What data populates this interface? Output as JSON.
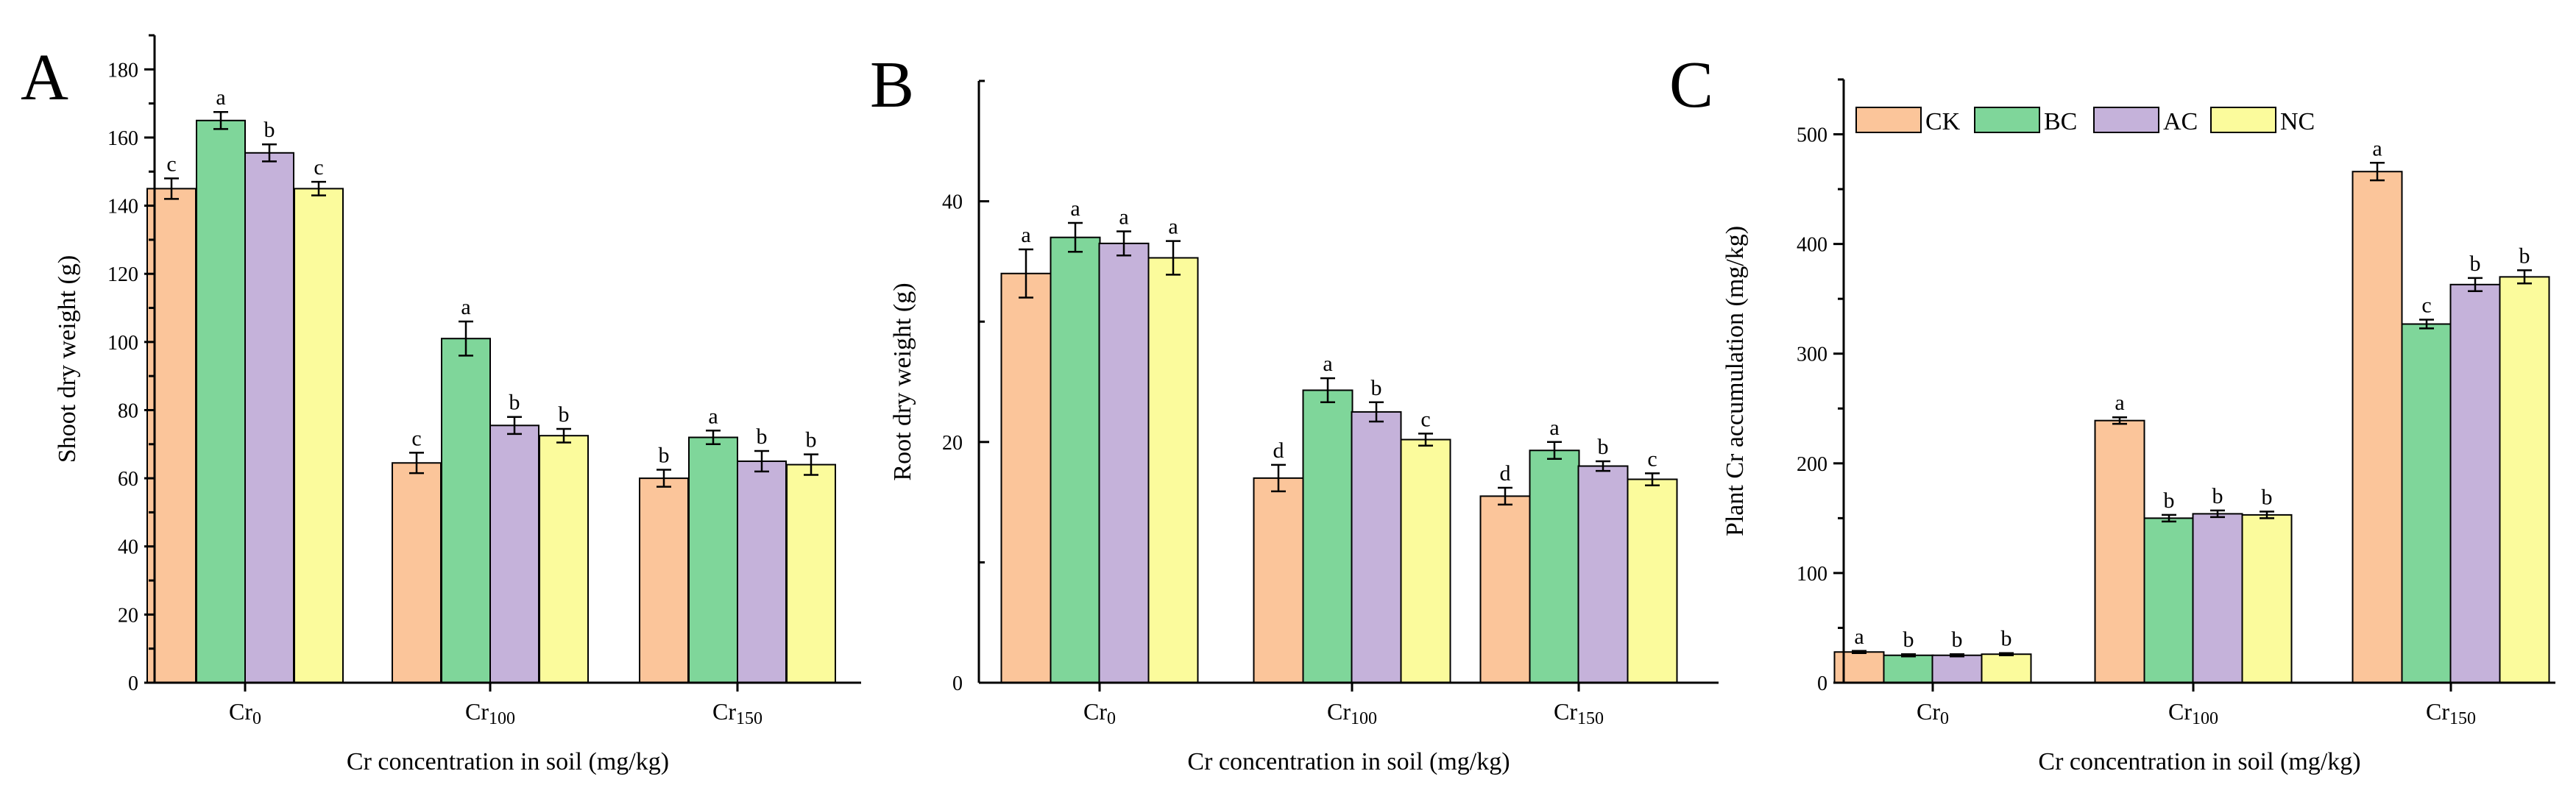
{
  "series_colors": {
    "CK": "#FBC59A",
    "BC": "#7FD69A",
    "AC": "#C5B2DA",
    "NC": "#FBFB9C"
  },
  "legend": {
    "labels": [
      "CK",
      "BC",
      "AC",
      "NC"
    ]
  },
  "chart_data": [
    {
      "type": "bar",
      "panel": "A",
      "title": "",
      "xlabel": "Cr concentration in soil (mg/kg)",
      "ylabel": "Shoot dry weight (g)",
      "ylim": [
        0,
        190
      ],
      "yticks": [
        0,
        20,
        40,
        60,
        80,
        100,
        120,
        140,
        160,
        180
      ],
      "categories": [
        {
          "main": "Cr",
          "sub": "0"
        },
        {
          "main": "Cr",
          "sub": "100"
        },
        {
          "main": "Cr",
          "sub": "150"
        }
      ],
      "series": [
        {
          "name": "CK",
          "values": [
            145,
            64.5,
            60
          ],
          "errors": [
            3,
            3,
            2.5
          ],
          "labels": [
            "c",
            "c",
            "b"
          ]
        },
        {
          "name": "BC",
          "values": [
            165,
            101,
            72
          ],
          "errors": [
            2.5,
            5,
            2
          ],
          "labels": [
            "a",
            "a",
            "a"
          ]
        },
        {
          "name": "AC",
          "values": [
            155.5,
            75.5,
            65
          ],
          "errors": [
            2.5,
            2.5,
            3
          ],
          "labels": [
            "b",
            "b",
            "b"
          ]
        },
        {
          "name": "NC",
          "values": [
            145,
            72.5,
            64
          ],
          "errors": [
            2,
            2,
            3
          ],
          "labels": [
            "c",
            "b",
            "b"
          ]
        }
      ]
    },
    {
      "type": "bar",
      "panel": "B",
      "title": "",
      "xlabel": "Cr concentration in soil (mg/kg)",
      "ylabel": "Root dry weight (g)",
      "ylim": [
        0,
        50
      ],
      "yticks": [
        0,
        20,
        40
      ],
      "categories": [
        {
          "main": "Cr",
          "sub": "0"
        },
        {
          "main": "Cr",
          "sub": "100"
        },
        {
          "main": "Cr",
          "sub": "150"
        }
      ],
      "series": [
        {
          "name": "CK",
          "values": [
            34,
            17,
            15.5
          ],
          "errors": [
            2,
            1.1,
            0.7
          ],
          "labels": [
            "a",
            "d",
            "d"
          ]
        },
        {
          "name": "BC",
          "values": [
            37,
            24.3,
            19.3
          ],
          "errors": [
            1.2,
            1,
            0.7
          ],
          "labels": [
            "a",
            "a",
            "a"
          ]
        },
        {
          "name": "AC",
          "values": [
            36.5,
            22.5,
            18
          ],
          "errors": [
            1,
            0.8,
            0.4
          ],
          "labels": [
            "a",
            "b",
            "b"
          ]
        },
        {
          "name": "NC",
          "values": [
            35.3,
            20.2,
            16.9
          ],
          "errors": [
            1.4,
            0.5,
            0.5
          ],
          "labels": [
            "a",
            "c",
            "c"
          ]
        }
      ]
    },
    {
      "type": "bar",
      "panel": "C",
      "title": "",
      "xlabel": "Cr concentration in soil (mg/kg)",
      "ylabel": "Plant Cr accumulation (mg/kg)",
      "ylim": [
        0,
        550
      ],
      "yticks": [
        0,
        100,
        200,
        300,
        400,
        500
      ],
      "categories": [
        {
          "main": "Cr",
          "sub": "0"
        },
        {
          "main": "Cr",
          "sub": "100"
        },
        {
          "main": "Cr",
          "sub": "150"
        }
      ],
      "series": [
        {
          "name": "CK",
          "values": [
            28,
            239,
            466
          ],
          "errors": [
            1,
            3,
            8
          ],
          "labels": [
            "a",
            "a",
            "a"
          ]
        },
        {
          "name": "BC",
          "values": [
            25,
            150,
            327
          ],
          "errors": [
            1,
            3,
            4
          ],
          "labels": [
            "b",
            "b",
            "c"
          ]
        },
        {
          "name": "AC",
          "values": [
            25,
            154,
            363
          ],
          "errors": [
            1,
            3,
            6
          ],
          "labels": [
            "b",
            "b",
            "b"
          ]
        },
        {
          "name": "NC",
          "values": [
            26,
            153,
            370
          ],
          "errors": [
            1,
            3,
            6
          ],
          "labels": [
            "b",
            "b",
            "b"
          ]
        }
      ]
    }
  ]
}
